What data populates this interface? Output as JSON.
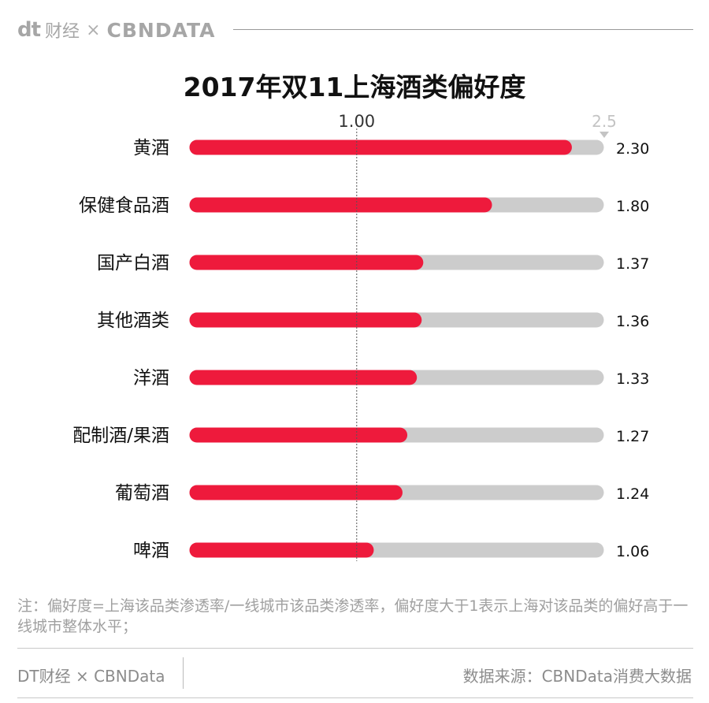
{
  "brand": {
    "logo_dt": "dt",
    "logo_cj": "财经",
    "logo_x": "×",
    "logo_cbn": "CBNDATA"
  },
  "chart_data": {
    "type": "bar",
    "orientation": "horizontal",
    "title": "2017年双11上海酒类偏好度",
    "categories": [
      "黄酒",
      "保健食品酒",
      "国产白酒",
      "其他酒类",
      "洋酒",
      "配制酒/果酒",
      "葡萄酒",
      "啤酒"
    ],
    "values": [
      2.3,
      1.8,
      1.37,
      1.36,
      1.33,
      1.27,
      1.24,
      1.06
    ],
    "value_labels": [
      "2.30",
      "1.80",
      "1.37",
      "1.36",
      "1.33",
      "1.27",
      "1.24",
      "1.06"
    ],
    "xlim": [
      0,
      2.5
    ],
    "max_label": "2.5",
    "reference_value": 1.0,
    "reference_label": "1.00",
    "bar_color": "#ee1a3c",
    "track_color": "#cccccc"
  },
  "note": "注：偏好度=上海该品类渗透率/一线城市该品类渗透率，偏好度大于1表示上海对该品类的偏好高于一线城市整体水平；",
  "footer": {
    "left": "DT财经 × CBNData",
    "right": "数据来源：CBNData消费大数据"
  }
}
